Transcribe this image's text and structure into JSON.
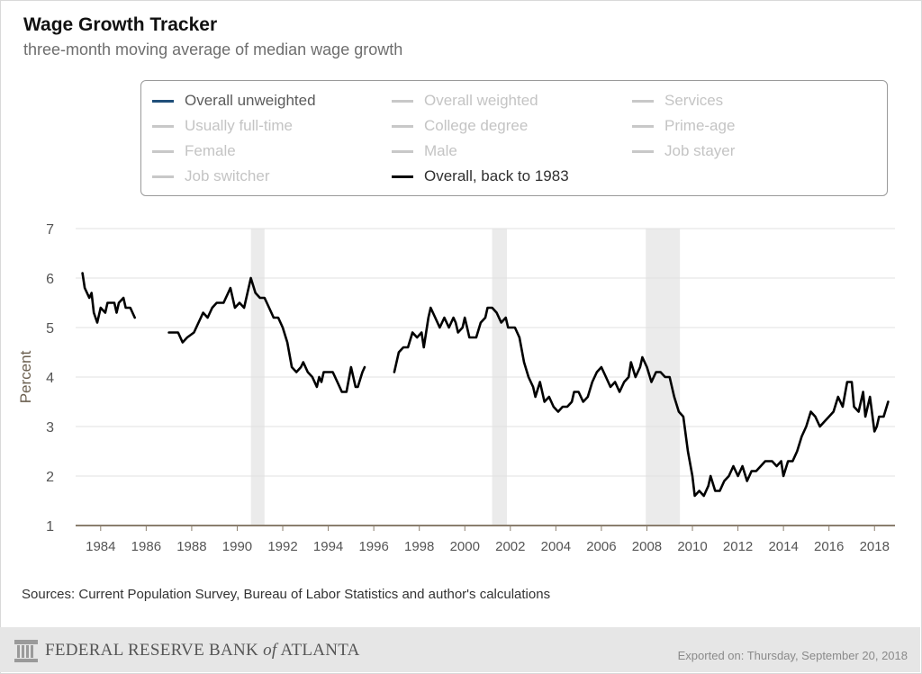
{
  "header": {
    "title": "Wage Growth Tracker",
    "subtitle": "three-month moving average of median wage growth"
  },
  "legend": {
    "items": [
      {
        "label": "Overall unweighted",
        "color": "#1f4e79",
        "active": true
      },
      {
        "label": "Overall weighted",
        "color": "#c8c8c8",
        "active": false
      },
      {
        "label": "Services",
        "color": "#c8c8c8",
        "active": false
      },
      {
        "label": "Usually full-time",
        "color": "#c8c8c8",
        "active": false
      },
      {
        "label": "College degree",
        "color": "#c8c8c8",
        "active": false
      },
      {
        "label": "Prime-age",
        "color": "#c8c8c8",
        "active": false
      },
      {
        "label": "Female",
        "color": "#c8c8c8",
        "active": false
      },
      {
        "label": "Male",
        "color": "#c8c8c8",
        "active": false
      },
      {
        "label": "Job stayer",
        "color": "#c8c8c8",
        "active": false
      },
      {
        "label": "Job switcher",
        "color": "#c8c8c8",
        "active": false
      },
      {
        "label": "Overall, back to 1983",
        "color": "#000000",
        "active": true
      }
    ]
  },
  "chart_data": {
    "type": "line",
    "ylabel": "Percent",
    "ylim": [
      1,
      7
    ],
    "yticks": [
      1,
      2,
      3,
      4,
      5,
      6,
      7
    ],
    "xlim": [
      1982.9,
      2018.9
    ],
    "xticks": [
      "1984",
      "1986",
      "1988",
      "1990",
      "1992",
      "1994",
      "1996",
      "1998",
      "2000",
      "2002",
      "2004",
      "2006",
      "2008",
      "2010",
      "2012",
      "2014",
      "2016",
      "2018"
    ],
    "grid": true,
    "recessions": [
      [
        1990.6,
        1991.2
      ],
      [
        2001.2,
        2001.85
      ],
      [
        2007.95,
        2009.45
      ]
    ],
    "series": [
      {
        "name": "Overall, back to 1983",
        "color": "#000000",
        "segments": [
          [
            [
              1983.2,
              6.1
            ],
            [
              1983.3,
              5.8
            ],
            [
              1983.5,
              5.6
            ],
            [
              1983.6,
              5.7
            ],
            [
              1983.7,
              5.3
            ],
            [
              1983.85,
              5.1
            ],
            [
              1984.0,
              5.4
            ],
            [
              1984.2,
              5.3
            ],
            [
              1984.3,
              5.5
            ],
            [
              1984.6,
              5.5
            ],
            [
              1984.7,
              5.3
            ],
            [
              1984.8,
              5.5
            ],
            [
              1985.0,
              5.6
            ],
            [
              1985.1,
              5.4
            ],
            [
              1985.3,
              5.4
            ],
            [
              1985.5,
              5.2
            ]
          ],
          [
            [
              1987.0,
              4.9
            ],
            [
              1987.4,
              4.9
            ],
            [
              1987.5,
              4.8
            ],
            [
              1987.6,
              4.7
            ],
            [
              1987.8,
              4.8
            ],
            [
              1988.1,
              4.9
            ],
            [
              1988.3,
              5.1
            ],
            [
              1988.5,
              5.3
            ],
            [
              1988.7,
              5.2
            ],
            [
              1988.9,
              5.4
            ],
            [
              1989.1,
              5.5
            ],
            [
              1989.4,
              5.5
            ],
            [
              1989.6,
              5.7
            ],
            [
              1989.7,
              5.8
            ],
            [
              1989.8,
              5.6
            ],
            [
              1989.9,
              5.4
            ],
            [
              1990.1,
              5.5
            ],
            [
              1990.3,
              5.4
            ],
            [
              1990.5,
              5.8
            ],
            [
              1990.6,
              6.0
            ],
            [
              1990.8,
              5.7
            ],
            [
              1991.0,
              5.6
            ],
            [
              1991.2,
              5.6
            ],
            [
              1991.4,
              5.4
            ],
            [
              1991.6,
              5.2
            ],
            [
              1991.8,
              5.2
            ],
            [
              1992.0,
              5.0
            ],
            [
              1992.2,
              4.7
            ],
            [
              1992.4,
              4.2
            ],
            [
              1992.6,
              4.1
            ],
            [
              1992.8,
              4.2
            ],
            [
              1992.9,
              4.3
            ],
            [
              1993.1,
              4.1
            ],
            [
              1993.3,
              4.0
            ],
            [
              1993.5,
              3.8
            ],
            [
              1993.6,
              4.0
            ],
            [
              1993.7,
              3.9
            ],
            [
              1993.8,
              4.1
            ],
            [
              1994.2,
              4.1
            ],
            [
              1994.4,
              3.9
            ],
            [
              1994.6,
              3.7
            ],
            [
              1994.8,
              3.7
            ],
            [
              1995.0,
              4.2
            ],
            [
              1995.2,
              3.8
            ],
            [
              1995.3,
              3.8
            ],
            [
              1995.5,
              4.1
            ],
            [
              1995.6,
              4.2
            ]
          ],
          [
            [
              1996.9,
              4.1
            ],
            [
              1997.1,
              4.5
            ],
            [
              1997.3,
              4.6
            ],
            [
              1997.5,
              4.6
            ],
            [
              1997.7,
              4.9
            ],
            [
              1997.9,
              4.8
            ],
            [
              1998.1,
              4.9
            ],
            [
              1998.2,
              4.6
            ],
            [
              1998.4,
              5.2
            ],
            [
              1998.5,
              5.4
            ],
            [
              1998.7,
              5.2
            ],
            [
              1998.9,
              5.0
            ],
            [
              1999.1,
              5.2
            ],
            [
              1999.3,
              5.0
            ],
            [
              1999.5,
              5.2
            ],
            [
              1999.6,
              5.1
            ],
            [
              1999.7,
              4.9
            ],
            [
              1999.9,
              5.0
            ],
            [
              2000.0,
              5.2
            ],
            [
              2000.1,
              5.0
            ],
            [
              2000.2,
              4.8
            ],
            [
              2000.5,
              4.8
            ],
            [
              2000.7,
              5.1
            ],
            [
              2000.9,
              5.2
            ],
            [
              2001.0,
              5.4
            ],
            [
              2001.2,
              5.4
            ],
            [
              2001.4,
              5.3
            ],
            [
              2001.6,
              5.1
            ],
            [
              2001.8,
              5.2
            ],
            [
              2001.9,
              5.0
            ],
            [
              2002.2,
              5.0
            ],
            [
              2002.4,
              4.8
            ],
            [
              2002.6,
              4.3
            ],
            [
              2002.8,
              4.0
            ],
            [
              2003.0,
              3.8
            ],
            [
              2003.1,
              3.6
            ],
            [
              2003.3,
              3.9
            ],
            [
              2003.5,
              3.5
            ],
            [
              2003.7,
              3.6
            ],
            [
              2003.9,
              3.4
            ],
            [
              2004.1,
              3.3
            ],
            [
              2004.3,
              3.4
            ],
            [
              2004.5,
              3.4
            ],
            [
              2004.7,
              3.5
            ],
            [
              2004.8,
              3.7
            ],
            [
              2005.0,
              3.7
            ],
            [
              2005.2,
              3.5
            ],
            [
              2005.4,
              3.6
            ],
            [
              2005.6,
              3.9
            ],
            [
              2005.8,
              4.1
            ],
            [
              2006.0,
              4.2
            ],
            [
              2006.2,
              4.0
            ],
            [
              2006.4,
              3.8
            ],
            [
              2006.6,
              3.9
            ],
            [
              2006.8,
              3.7
            ],
            [
              2007.0,
              3.9
            ],
            [
              2007.2,
              4.0
            ],
            [
              2007.3,
              4.3
            ],
            [
              2007.5,
              4.0
            ],
            [
              2007.7,
              4.2
            ],
            [
              2007.8,
              4.4
            ],
            [
              2008.0,
              4.2
            ],
            [
              2008.2,
              3.9
            ],
            [
              2008.4,
              4.1
            ],
            [
              2008.6,
              4.1
            ],
            [
              2008.8,
              4.0
            ],
            [
              2009.0,
              4.0
            ],
            [
              2009.2,
              3.6
            ],
            [
              2009.4,
              3.3
            ],
            [
              2009.6,
              3.2
            ],
            [
              2009.8,
              2.5
            ],
            [
              2010.0,
              2.0
            ],
            [
              2010.1,
              1.6
            ],
            [
              2010.3,
              1.7
            ],
            [
              2010.5,
              1.6
            ],
            [
              2010.7,
              1.8
            ],
            [
              2010.8,
              2.0
            ],
            [
              2011.0,
              1.7
            ],
            [
              2011.2,
              1.7
            ],
            [
              2011.4,
              1.9
            ],
            [
              2011.6,
              2.0
            ],
            [
              2011.8,
              2.2
            ],
            [
              2012.0,
              2.0
            ],
            [
              2012.2,
              2.2
            ],
            [
              2012.4,
              1.9
            ],
            [
              2012.6,
              2.1
            ],
            [
              2012.8,
              2.1
            ],
            [
              2013.0,
              2.2
            ],
            [
              2013.2,
              2.3
            ],
            [
              2013.5,
              2.3
            ],
            [
              2013.7,
              2.2
            ],
            [
              2013.9,
              2.3
            ],
            [
              2014.0,
              2.0
            ],
            [
              2014.2,
              2.3
            ],
            [
              2014.4,
              2.3
            ],
            [
              2014.6,
              2.5
            ],
            [
              2014.8,
              2.8
            ],
            [
              2015.0,
              3.0
            ],
            [
              2015.2,
              3.3
            ],
            [
              2015.4,
              3.2
            ],
            [
              2015.6,
              3.0
            ],
            [
              2015.8,
              3.1
            ],
            [
              2016.0,
              3.2
            ],
            [
              2016.2,
              3.3
            ],
            [
              2016.4,
              3.6
            ],
            [
              2016.6,
              3.4
            ],
            [
              2016.8,
              3.9
            ],
            [
              2017.0,
              3.9
            ],
            [
              2017.1,
              3.4
            ],
            [
              2017.3,
              3.3
            ],
            [
              2017.5,
              3.7
            ],
            [
              2017.6,
              3.2
            ],
            [
              2017.8,
              3.6
            ],
            [
              2018.0,
              2.9
            ],
            [
              2018.1,
              3.0
            ],
            [
              2018.2,
              3.2
            ],
            [
              2018.4,
              3.2
            ],
            [
              2018.6,
              3.5
            ]
          ]
        ]
      }
    ]
  },
  "footer": {
    "sources": "Sources: Current Population Survey, Bureau of Labor Statistics and author's calculations",
    "logo_text": "FEDERAL RESERVE BANK",
    "logo_of": "of",
    "logo_city": "ATLANTA",
    "exported": "Exported on: Thursday, September 20, 2018"
  }
}
